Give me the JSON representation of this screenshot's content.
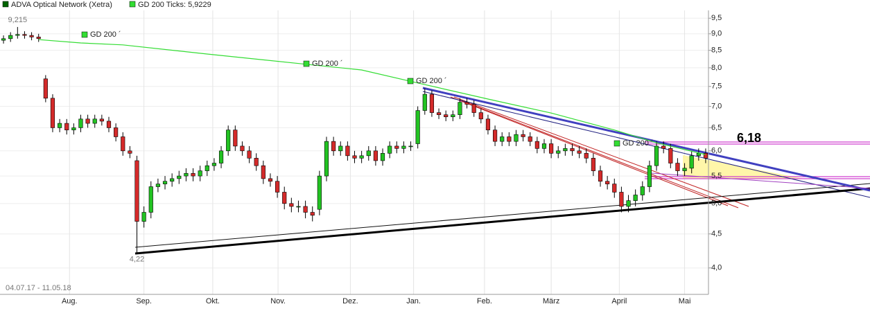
{
  "chart_data": {
    "type": "candlestick",
    "log_scale": true,
    "grid": true,
    "period": "04.07.17 - 11.05.18",
    "categories": [
      null,
      null,
      null,
      null,
      null,
      null,
      null,
      null,
      null,
      null,
      null,
      null,
      null,
      null,
      null,
      null,
      null,
      null,
      null,
      null,
      null,
      null,
      null,
      null,
      null,
      null,
      null,
      null,
      null,
      null,
      null,
      null,
      null,
      null,
      null,
      null,
      null,
      null,
      null,
      null,
      null,
      null,
      null,
      null,
      null,
      null,
      null,
      null,
      null,
      null,
      null,
      null,
      null,
      null,
      null,
      null,
      null,
      null,
      null,
      null,
      null,
      null,
      null,
      null,
      null,
      null,
      null,
      null,
      null,
      null,
      null,
      null,
      null,
      null,
      null,
      null,
      null,
      null,
      null,
      null,
      null,
      null,
      null,
      null,
      null,
      null,
      null,
      null,
      null,
      null,
      null,
      null,
      null,
      null,
      null,
      null,
      null,
      null,
      null,
      null,
      null
    ],
    "series": [
      {
        "name": "ADVA Optical Network (Xetra)",
        "color": "#006400",
        "up_color": "#22c322",
        "down_color": "#d42a2a",
        "open": [
          8.8,
          8.85,
          8.95,
          8.98,
          8.95,
          8.9,
          7.7,
          7.2,
          6.5,
          6.6,
          6.45,
          6.5,
          6.7,
          6.6,
          6.7,
          6.65,
          6.5,
          6.3,
          6.0,
          5.8,
          4.7,
          4.85,
          5.3,
          5.35,
          5.4,
          5.45,
          5.5,
          5.55,
          5.5,
          5.6,
          5.7,
          5.75,
          6.0,
          6.45,
          6.1,
          6.0,
          5.85,
          5.7,
          5.45,
          5.4,
          5.2,
          5.0,
          4.95,
          4.95,
          4.85,
          4.9,
          5.5,
          6.2,
          6.0,
          6.1,
          5.9,
          5.85,
          5.9,
          6.0,
          5.8,
          5.95,
          6.1,
          6.05,
          6.1,
          6.15,
          6.9,
          7.3,
          6.85,
          6.8,
          6.75,
          6.8,
          7.1,
          7.05,
          6.85,
          6.7,
          6.45,
          6.2,
          6.3,
          6.2,
          6.35,
          6.3,
          6.2,
          6.05,
          6.15,
          5.95,
          6.0,
          6.05,
          6.0,
          5.95,
          5.85,
          5.6,
          5.4,
          5.35,
          5.2,
          4.95,
          5.05,
          5.15,
          5.3,
          5.7,
          6.1,
          6.05,
          5.75,
          5.6,
          5.65,
          5.9,
          5.95
        ],
        "high": [
          8.95,
          9.05,
          9.215,
          9.08,
          9.05,
          9.0,
          7.8,
          7.3,
          6.7,
          6.7,
          6.6,
          6.8,
          6.8,
          6.8,
          6.8,
          6.75,
          6.6,
          6.4,
          6.1,
          5.9,
          4.95,
          5.4,
          5.45,
          5.5,
          5.55,
          5.6,
          5.65,
          5.65,
          5.7,
          5.8,
          5.85,
          6.1,
          6.55,
          6.55,
          6.2,
          6.1,
          5.95,
          5.8,
          5.55,
          5.5,
          5.3,
          5.1,
          5.05,
          5.05,
          4.95,
          5.6,
          6.3,
          6.3,
          6.2,
          6.2,
          6.0,
          6.0,
          6.1,
          6.1,
          6.05,
          6.2,
          6.2,
          6.2,
          6.2,
          7.0,
          7.45,
          7.4,
          6.95,
          6.9,
          6.9,
          7.2,
          7.2,
          7.15,
          6.95,
          6.8,
          6.55,
          6.4,
          6.4,
          6.45,
          6.45,
          6.4,
          6.3,
          6.25,
          6.25,
          6.1,
          6.15,
          6.15,
          6.1,
          6.05,
          5.95,
          5.7,
          5.5,
          5.45,
          5.3,
          5.15,
          5.25,
          5.4,
          5.8,
          6.2,
          6.2,
          6.15,
          5.85,
          5.75,
          6.0,
          6.05,
          6.05
        ],
        "low": [
          8.7,
          8.75,
          8.85,
          8.85,
          8.8,
          8.75,
          7.1,
          6.4,
          6.4,
          6.35,
          6.35,
          6.4,
          6.5,
          6.5,
          6.55,
          6.4,
          6.2,
          5.9,
          5.85,
          4.22,
          4.6,
          4.75,
          5.2,
          5.25,
          5.3,
          5.35,
          5.4,
          5.4,
          5.4,
          5.5,
          5.6,
          5.65,
          5.9,
          6.0,
          5.9,
          5.75,
          5.6,
          5.35,
          5.3,
          5.1,
          4.9,
          4.85,
          4.85,
          4.75,
          4.7,
          4.8,
          5.4,
          5.9,
          5.9,
          5.8,
          5.75,
          5.75,
          5.8,
          5.7,
          5.7,
          5.85,
          5.95,
          5.95,
          6.0,
          6.05,
          6.8,
          6.75,
          6.7,
          6.65,
          6.65,
          6.7,
          6.95,
          6.75,
          6.6,
          6.35,
          6.1,
          6.1,
          6.1,
          6.1,
          6.2,
          6.1,
          5.95,
          5.95,
          5.85,
          5.85,
          5.9,
          5.9,
          5.85,
          5.75,
          5.5,
          5.3,
          5.25,
          5.1,
          4.85,
          4.85,
          4.95,
          5.05,
          5.2,
          5.6,
          5.95,
          5.65,
          5.5,
          5.5,
          5.55,
          5.8,
          5.75
        ],
        "close": [
          8.85,
          8.95,
          8.98,
          8.95,
          8.9,
          8.85,
          7.2,
          6.5,
          6.6,
          6.45,
          6.5,
          6.7,
          6.6,
          6.7,
          6.65,
          6.5,
          6.3,
          6.0,
          5.95,
          4.7,
          4.85,
          5.3,
          5.35,
          5.4,
          5.45,
          5.5,
          5.55,
          5.5,
          5.6,
          5.7,
          5.75,
          6.0,
          6.45,
          6.1,
          6.0,
          5.85,
          5.7,
          5.45,
          5.4,
          5.2,
          5.0,
          4.95,
          4.95,
          4.85,
          4.8,
          5.5,
          6.2,
          6.0,
          6.1,
          5.9,
          5.85,
          5.9,
          6.0,
          5.8,
          5.95,
          6.1,
          6.05,
          6.1,
          6.1,
          6.9,
          7.3,
          6.85,
          6.8,
          6.75,
          6.8,
          7.1,
          7.05,
          6.85,
          6.7,
          6.45,
          6.2,
          6.3,
          6.2,
          6.35,
          6.3,
          6.2,
          6.05,
          6.15,
          5.95,
          6.0,
          6.05,
          6.0,
          5.95,
          5.85,
          5.6,
          5.4,
          5.35,
          5.2,
          4.95,
          5.05,
          5.15,
          5.3,
          5.7,
          6.1,
          6.05,
          5.75,
          5.6,
          5.65,
          5.9,
          5.95,
          5.85
        ]
      }
    ],
    "ma": {
      "name": "GD 200 Ticks: 5,9229",
      "color": "#33dd33",
      "x": [
        5,
        11,
        17,
        29,
        43,
        51,
        59,
        69,
        78,
        87,
        93,
        100
      ],
      "values": [
        8.82,
        8.72,
        8.66,
        8.39,
        8.1,
        7.94,
        7.59,
        7.18,
        6.84,
        6.45,
        6.17,
        5.9229
      ],
      "labels": [
        "GD 200 ´",
        "GD 200 ´",
        "GD 200 ´",
        "GD 200 ´"
      ]
    },
    "annotations": [
      "9,215",
      "4,22",
      "6,18"
    ],
    "xlim": [
      -0.5,
      100.4
    ],
    "xticks": [
      {
        "value": 9.4,
        "label": "Aug."
      },
      {
        "value": 20.0,
        "label": "Sep."
      },
      {
        "value": 29.8,
        "label": "Okt."
      },
      {
        "value": 39.1,
        "label": "Nov."
      },
      {
        "value": 49.4,
        "label": "Dez."
      },
      {
        "value": 58.4,
        "label": "Jan."
      },
      {
        "value": 68.5,
        "label": "Feb."
      },
      {
        "value": 78.0,
        "label": "März"
      },
      {
        "value": 87.7,
        "label": "April"
      },
      {
        "value": 97.0,
        "label": "Mai"
      }
    ],
    "ylim": [
      3.65,
      9.76
    ],
    "yticks": [
      {
        "value": 9.5,
        "label": "9,5"
      },
      {
        "value": 9.0,
        "label": "9,0"
      },
      {
        "value": 8.5,
        "label": "8,5"
      },
      {
        "value": 8.0,
        "label": "8,0"
      },
      {
        "value": 7.5,
        "label": "7,5"
      },
      {
        "value": 7.0,
        "label": "7,0"
      },
      {
        "value": 6.5,
        "label": "6,5"
      },
      {
        "value": 6.0,
        "label": "6,0"
      },
      {
        "value": 5.5,
        "label": "5,5"
      },
      {
        "value": 5.0,
        "label": "5,0"
      },
      {
        "value": 4.5,
        "label": "4,5"
      },
      {
        "value": 4.0,
        "label": "4,0"
      }
    ]
  }
}
